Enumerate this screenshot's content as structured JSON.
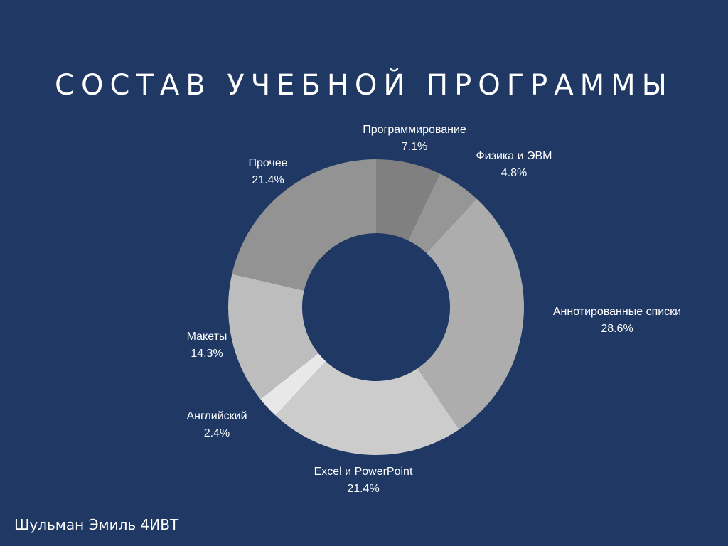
{
  "background": "#1f3864",
  "slide": {
    "title": "СОСТАВ УЧЕБНОЙ ПРОГРАММЫ",
    "author": "Шульман Эмиль 4ИВТ"
  },
  "chart_data": {
    "type": "pie",
    "donut": true,
    "title": "",
    "legend": "none",
    "labels_show": "category and percent",
    "slices": [
      {
        "category": "Программирование",
        "percent_label": "7.1%",
        "value": 7.1,
        "color": "#808080"
      },
      {
        "category": "Физика и ЭВМ",
        "percent_label": "4.8%",
        "value": 4.8,
        "color": "#969696"
      },
      {
        "category": "Аннотированные списки",
        "percent_label": "28.6%",
        "value": 28.6,
        "color": "#adadad"
      },
      {
        "category": "Excel и PowerPoint",
        "percent_label": "21.4%",
        "value": 21.4,
        "color": "#cccccc"
      },
      {
        "category": "Английский",
        "percent_label": "2.4%",
        "value": 2.4,
        "color": "#e8e8e8"
      },
      {
        "category": "Макеты",
        "percent_label": "14.3%",
        "value": 14.3,
        "color": "#bdbdbd"
      },
      {
        "category": "Прочее",
        "percent_label": "21.4%",
        "value": 21.4,
        "color": "#939393"
      }
    ]
  }
}
